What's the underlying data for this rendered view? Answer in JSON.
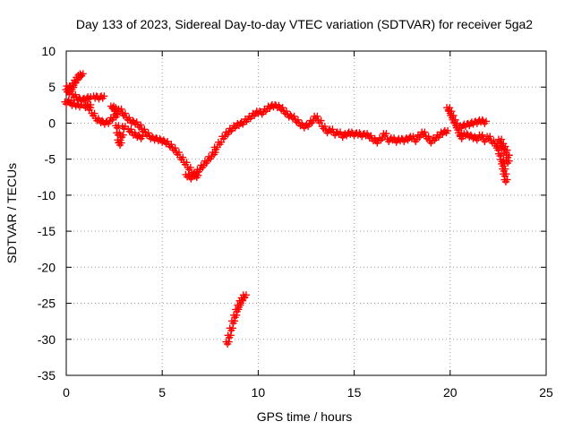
{
  "chart_data": {
    "type": "scatter",
    "title": "Day 133 of 2023, Sidereal Day-to-day VTEC variation (SDTVAR) for receiver 5ga2",
    "xlabel": "GPS time / hours",
    "ylabel": "SDTVAR / TECUs",
    "xlim": [
      0,
      25
    ],
    "ylim": [
      -35,
      10
    ],
    "xticks": [
      0,
      5,
      10,
      15,
      20,
      25
    ],
    "yticks": [
      10,
      5,
      0,
      -5,
      -10,
      -15,
      -20,
      -25,
      -30,
      -35
    ],
    "grid": true,
    "marker": "+",
    "color": "#ff0000",
    "series": [
      {
        "name": "SDTVAR",
        "points": [
          [
            0.0,
            2.8
          ],
          [
            0.05,
            4.5
          ],
          [
            0.1,
            5.0
          ],
          [
            0.15,
            4.2
          ],
          [
            0.2,
            3.0
          ],
          [
            0.3,
            4.8
          ],
          [
            0.4,
            5.4
          ],
          [
            0.5,
            5.8
          ],
          [
            0.6,
            6.2
          ],
          [
            0.7,
            6.5
          ],
          [
            0.8,
            6.7
          ],
          [
            0.3,
            2.6
          ],
          [
            0.5,
            2.5
          ],
          [
            0.7,
            2.4
          ],
          [
            1.0,
            2.3
          ],
          [
            1.2,
            2.4
          ],
          [
            0.4,
            3.8
          ],
          [
            0.6,
            3.4
          ],
          [
            0.8,
            3.2
          ],
          [
            1.0,
            3.3
          ],
          [
            1.2,
            3.5
          ],
          [
            1.5,
            3.6
          ],
          [
            1.7,
            3.5
          ],
          [
            1.9,
            3.6
          ],
          [
            1.2,
            2.0
          ],
          [
            1.4,
            1.2
          ],
          [
            1.6,
            0.5
          ],
          [
            1.8,
            0.2
          ],
          [
            2.0,
            0.0
          ],
          [
            2.2,
            0.1
          ],
          [
            2.4,
            0.6
          ],
          [
            2.6,
            1.5
          ],
          [
            2.8,
            1.8
          ],
          [
            2.4,
            2.2
          ],
          [
            2.5,
            2.0
          ],
          [
            2.6,
            1.0
          ],
          [
            2.65,
            -0.5
          ],
          [
            2.7,
            -1.5
          ],
          [
            2.75,
            -2.5
          ],
          [
            2.8,
            -2.9
          ],
          [
            2.9,
            -1.8
          ],
          [
            3.0,
            -0.6
          ],
          [
            3.0,
            1.2
          ],
          [
            3.2,
            0.6
          ],
          [
            3.4,
            0.2
          ],
          [
            3.6,
            0.0
          ],
          [
            3.8,
            -0.4
          ],
          [
            3.3,
            -1.0
          ],
          [
            3.5,
            -1.5
          ],
          [
            3.7,
            -1.8
          ],
          [
            3.9,
            -2.0
          ],
          [
            4.0,
            -1.0
          ],
          [
            4.2,
            -1.5
          ],
          [
            4.4,
            -2.0
          ],
          [
            4.6,
            -2.2
          ],
          [
            4.8,
            -2.3
          ],
          [
            5.0,
            -2.5
          ],
          [
            5.2,
            -2.7
          ],
          [
            5.4,
            -3.1
          ],
          [
            5.6,
            -3.6
          ],
          [
            5.8,
            -4.2
          ],
          [
            6.0,
            -4.9
          ],
          [
            6.2,
            -5.6
          ],
          [
            6.4,
            -6.3
          ],
          [
            6.6,
            -7.0
          ],
          [
            6.8,
            -7.4
          ],
          [
            6.3,
            -7.3
          ],
          [
            6.5,
            -7.6
          ],
          [
            6.7,
            -7.2
          ],
          [
            6.9,
            -6.6
          ],
          [
            7.1,
            -6.0
          ],
          [
            7.3,
            -5.4
          ],
          [
            7.5,
            -4.8
          ],
          [
            7.7,
            -4.2
          ],
          [
            7.8,
            -3.5
          ],
          [
            8.0,
            -2.8
          ],
          [
            8.2,
            -2.0
          ],
          [
            8.4,
            -1.4
          ],
          [
            8.6,
            -0.9
          ],
          [
            8.8,
            -0.5
          ],
          [
            9.0,
            -0.2
          ],
          [
            9.2,
            0.0
          ],
          [
            9.4,
            0.4
          ],
          [
            9.6,
            0.8
          ],
          [
            9.8,
            1.2
          ],
          [
            10.0,
            1.5
          ],
          [
            10.2,
            1.4
          ],
          [
            10.4,
            1.8
          ],
          [
            10.6,
            2.2
          ],
          [
            10.8,
            2.4
          ],
          [
            11.0,
            2.3
          ],
          [
            11.2,
            2.0
          ],
          [
            11.4,
            1.5
          ],
          [
            11.6,
            1.0
          ],
          [
            11.8,
            0.8
          ],
          [
            12.0,
            0.3
          ],
          [
            12.2,
            -0.2
          ],
          [
            12.4,
            -0.5
          ],
          [
            12.6,
            -0.3
          ],
          [
            12.8,
            0.2
          ],
          [
            13.0,
            0.8
          ],
          [
            13.2,
            0.2
          ],
          [
            13.4,
            -0.6
          ],
          [
            13.6,
            -1.2
          ],
          [
            13.8,
            -1.0
          ],
          [
            14.0,
            -1.5
          ],
          [
            14.2,
            -1.4
          ],
          [
            14.4,
            -1.8
          ],
          [
            14.6,
            -1.6
          ],
          [
            14.8,
            -1.4
          ],
          [
            15.0,
            -1.6
          ],
          [
            15.2,
            -1.5
          ],
          [
            15.4,
            -1.7
          ],
          [
            15.6,
            -1.6
          ],
          [
            15.8,
            -1.9
          ],
          [
            16.0,
            -2.3
          ],
          [
            16.2,
            -2.6
          ],
          [
            16.4,
            -2.2
          ],
          [
            16.6,
            -1.6
          ],
          [
            16.8,
            -2.4
          ],
          [
            17.0,
            -2.2
          ],
          [
            17.2,
            -2.5
          ],
          [
            17.4,
            -2.3
          ],
          [
            17.6,
            -2.4
          ],
          [
            17.8,
            -2.2
          ],
          [
            18.0,
            -2.0
          ],
          [
            18.2,
            -2.4
          ],
          [
            18.4,
            -1.8
          ],
          [
            18.6,
            -1.4
          ],
          [
            18.8,
            -2.0
          ],
          [
            19.0,
            -2.6
          ],
          [
            19.2,
            -2.2
          ],
          [
            19.4,
            -1.8
          ],
          [
            19.6,
            -1.4
          ],
          [
            19.8,
            -1.2
          ],
          [
            19.9,
            2.0
          ],
          [
            20.0,
            1.5
          ],
          [
            20.1,
            0.9
          ],
          [
            20.2,
            0.3
          ],
          [
            20.3,
            -0.2
          ],
          [
            20.4,
            -0.8
          ],
          [
            20.5,
            -1.5
          ],
          [
            20.6,
            -2.0
          ],
          [
            20.6,
            -0.5
          ],
          [
            20.8,
            -0.3
          ],
          [
            21.0,
            -0.2
          ],
          [
            21.2,
            0.0
          ],
          [
            21.4,
            0.1
          ],
          [
            21.6,
            0.3
          ],
          [
            21.8,
            0.1
          ],
          [
            20.8,
            -1.6
          ],
          [
            21.0,
            -1.8
          ],
          [
            21.2,
            -2.0
          ],
          [
            21.4,
            -2.2
          ],
          [
            21.6,
            -1.8
          ],
          [
            21.8,
            -2.4
          ],
          [
            22.0,
            -2.0
          ],
          [
            22.2,
            -2.6
          ],
          [
            22.4,
            -3.0
          ],
          [
            22.5,
            -3.6
          ],
          [
            22.6,
            -4.4
          ],
          [
            22.7,
            -5.2
          ],
          [
            22.75,
            -5.8
          ],
          [
            22.8,
            -6.5
          ],
          [
            22.85,
            -7.2
          ],
          [
            22.9,
            -8.0
          ],
          [
            22.6,
            -2.4
          ],
          [
            22.7,
            -3.0
          ],
          [
            22.8,
            -3.4
          ],
          [
            22.9,
            -3.9
          ],
          [
            23.0,
            -4.6
          ],
          [
            23.0,
            -5.4
          ],
          [
            8.4,
            -30.5
          ],
          [
            8.5,
            -29.6
          ],
          [
            8.6,
            -28.6
          ],
          [
            8.7,
            -27.6
          ],
          [
            8.8,
            -26.8
          ],
          [
            8.9,
            -26.0
          ],
          [
            9.0,
            -25.4
          ],
          [
            9.1,
            -24.8
          ],
          [
            9.2,
            -24.4
          ],
          [
            9.3,
            -24.0
          ]
        ]
      }
    ]
  }
}
